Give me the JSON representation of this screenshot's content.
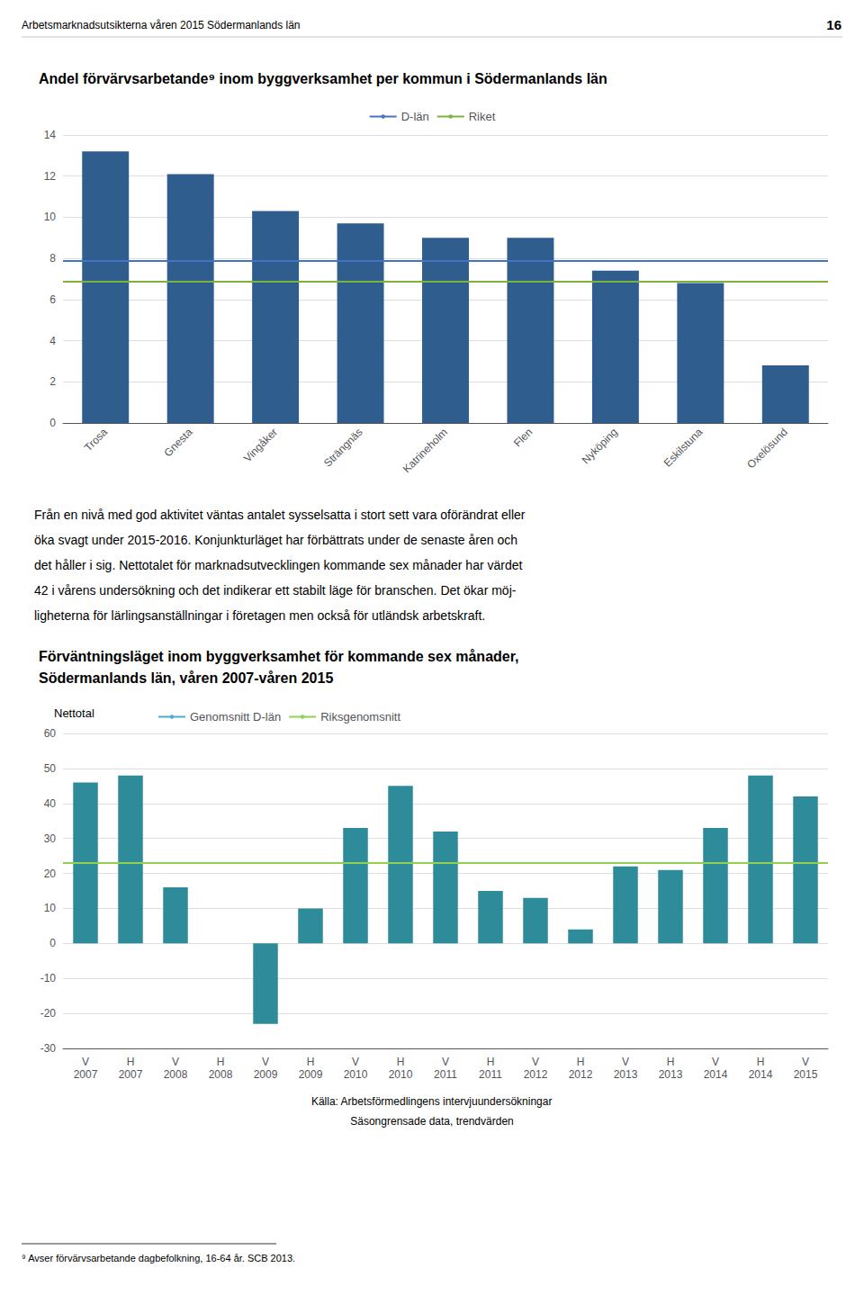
{
  "page_header": "Arbetsmarknadsutsikterna våren 2015 Södermanlands län",
  "page_number": "16",
  "text_block": [
    "Från en nivå med god aktivitet väntas antalet sysselsatta i stort sett vara oförändrat eller",
    "öka svagt under 2015-2016. Konjunkturläget har förbättrats under de senaste åren och",
    "det håller i sig. Nettotalet för marknadsutvecklingen kommande sex månader har värdet",
    "42 i vårens undersökning och det indikerar ett stabilt läge för branschen. Det ökar möj-",
    "ligheterna för lärlingsanställningar i företagen men också för utländsk arbetskraft."
  ],
  "source": [
    "Källa: Arbetsförmedlingens intervjuundersökningar",
    "Säsongrensade data, trendvärden"
  ],
  "footnote": "⁹ Avser förvärvsarbetande dagbefolkning, 16-64 år. SCB 2013.",
  "chart_data": [
    {
      "type": "bar",
      "title": "Andel förvärvsarbetande⁹ inom byggverksamhet per kommun i Södermanlands län",
      "categories": [
        "Trosa",
        "Gnesta",
        "Vingåker",
        "Strängnäs",
        "Katrineholm",
        "Flen",
        "Nyköping",
        "Eskilstuna",
        "Oxelösund"
      ],
      "values": [
        13.2,
        12.1,
        10.3,
        9.7,
        9.0,
        9.0,
        7.4,
        6.8,
        2.8
      ],
      "color": "#2E5D8E",
      "reference_lines": [
        {
          "name": "D-län",
          "value": 7.9,
          "color": "#4472C4"
        },
        {
          "name": "Riket",
          "value": 6.9,
          "color": "#7CB33D"
        }
      ],
      "ylim": [
        0,
        14
      ],
      "yticks": [
        0,
        2,
        4,
        6,
        8,
        10,
        12,
        14
      ],
      "grid": true,
      "legend": "top"
    },
    {
      "type": "bar",
      "title": "Förväntningsläget inom byggverksamhet för kommande sex månader,\nSödermanlands län, våren 2007-våren 2015",
      "categories": [
        "V\n2007",
        "H\n2007",
        "V\n2008",
        "H\n2008",
        "V\n2009",
        "H\n2009",
        "V\n2010",
        "H\n2010",
        "V\n2011",
        "H\n2011",
        "V\n2012",
        "H\n2012",
        "V\n2013",
        "H\n2013",
        "V\n2014",
        "H\n2014",
        "V\n2015"
      ],
      "values": [
        46,
        48,
        16,
        0,
        -23,
        10,
        33,
        45,
        32,
        15,
        13,
        4,
        22,
        21,
        33,
        48,
        42
      ],
      "color": "#2E8B9A",
      "reference_lines": [
        {
          "name": "Genomsnitt D-län",
          "value": 23,
          "color": "#4BACC6"
        },
        {
          "name": "Riksgenomsnitt",
          "value": 23,
          "color": "#92D050"
        }
      ],
      "annotations": [
        "Nettotal"
      ],
      "ylim": [
        -30,
        60
      ],
      "yticks": [
        -30,
        -20,
        -10,
        0,
        10,
        20,
        30,
        40,
        50,
        60
      ],
      "grid": true,
      "legend": "top"
    }
  ]
}
